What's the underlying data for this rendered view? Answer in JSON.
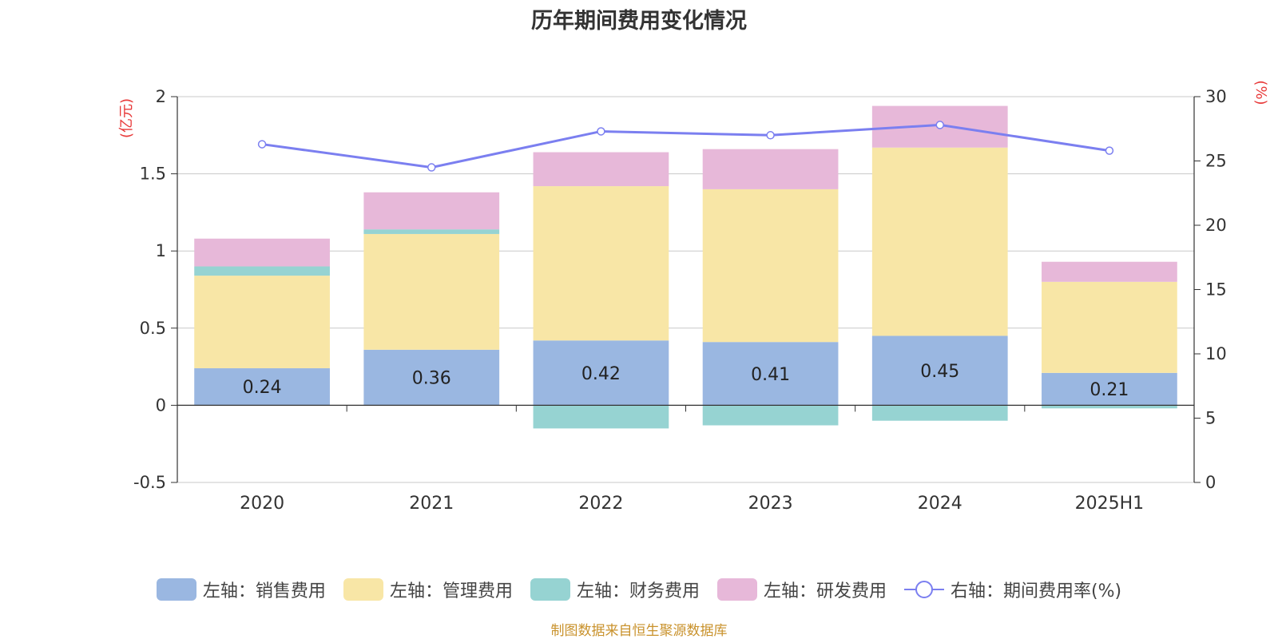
{
  "page": {
    "source_note": "制图数据来自恒生聚源数据库"
  },
  "chart_data": {
    "type": "bar",
    "title": "历年期间费用变化情况",
    "categories": [
      "2020",
      "2021",
      "2022",
      "2023",
      "2024",
      "2025H1"
    ],
    "stacked": true,
    "y_left": {
      "label": "(亿元)",
      "ylim": [
        -0.5,
        2
      ],
      "ticks": [
        -0.5,
        0,
        0.5,
        1,
        1.5,
        2
      ],
      "tick_labels": [
        "-0.5",
        "0",
        "0.5",
        "1",
        "1.5",
        "2"
      ]
    },
    "y_right": {
      "label": "(%)",
      "ylim": [
        0,
        30
      ],
      "ticks": [
        0,
        5,
        10,
        15,
        20,
        25,
        30
      ],
      "tick_labels": [
        "0",
        "5",
        "10",
        "15",
        "20",
        "25",
        "30"
      ]
    },
    "series": [
      {
        "name": "左轴：销售费用",
        "type": "bar",
        "axis": "left",
        "color": "#9ab7e1",
        "values": [
          0.24,
          0.36,
          0.42,
          0.41,
          0.45,
          0.21
        ],
        "data_labels": [
          "0.24",
          "0.36",
          "0.42",
          "0.41",
          "0.45",
          "0.21"
        ]
      },
      {
        "name": "左轴：管理费用",
        "type": "bar",
        "axis": "left",
        "color": "#f8e6a6",
        "values": [
          0.6,
          0.75,
          1.0,
          0.99,
          1.22,
          0.59
        ]
      },
      {
        "name": "左轴：财务费用",
        "type": "bar",
        "axis": "left",
        "color": "#96d3d2",
        "values": [
          0.06,
          0.03,
          -0.15,
          -0.13,
          -0.1,
          -0.02
        ]
      },
      {
        "name": "左轴：研发费用",
        "type": "bar",
        "axis": "left",
        "color": "#e7b8d9",
        "values": [
          0.18,
          0.24,
          0.22,
          0.26,
          0.27,
          0.13
        ]
      },
      {
        "name": "右轴：期间费用率(%)",
        "type": "line",
        "axis": "right",
        "color": "#7b7ff0",
        "values": [
          26.3,
          24.5,
          27.3,
          27.0,
          27.8,
          25.8
        ]
      }
    ],
    "grid": true,
    "legend_position": "bottom"
  }
}
